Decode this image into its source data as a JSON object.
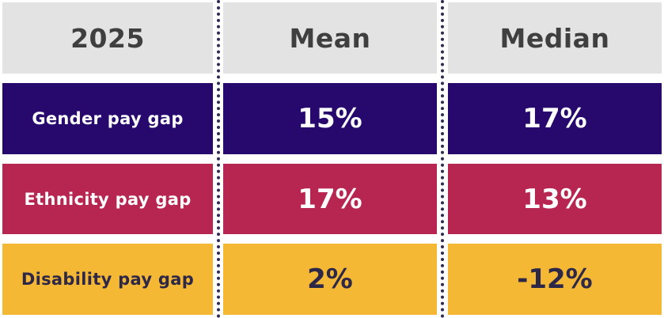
{
  "header": {
    "year": "2025",
    "mean": "Mean",
    "median": "Median"
  },
  "rows": [
    {
      "label": "Gender pay gap",
      "mean": "15%",
      "median": "17%",
      "color": "#27096e"
    },
    {
      "label": "Ethnicity pay gap",
      "mean": "17%",
      "median": "13%",
      "color": "#b72651"
    },
    {
      "label": "Disability pay gap",
      "mean": "2%",
      "median": "-12%",
      "color": "#f4b834"
    }
  ]
}
